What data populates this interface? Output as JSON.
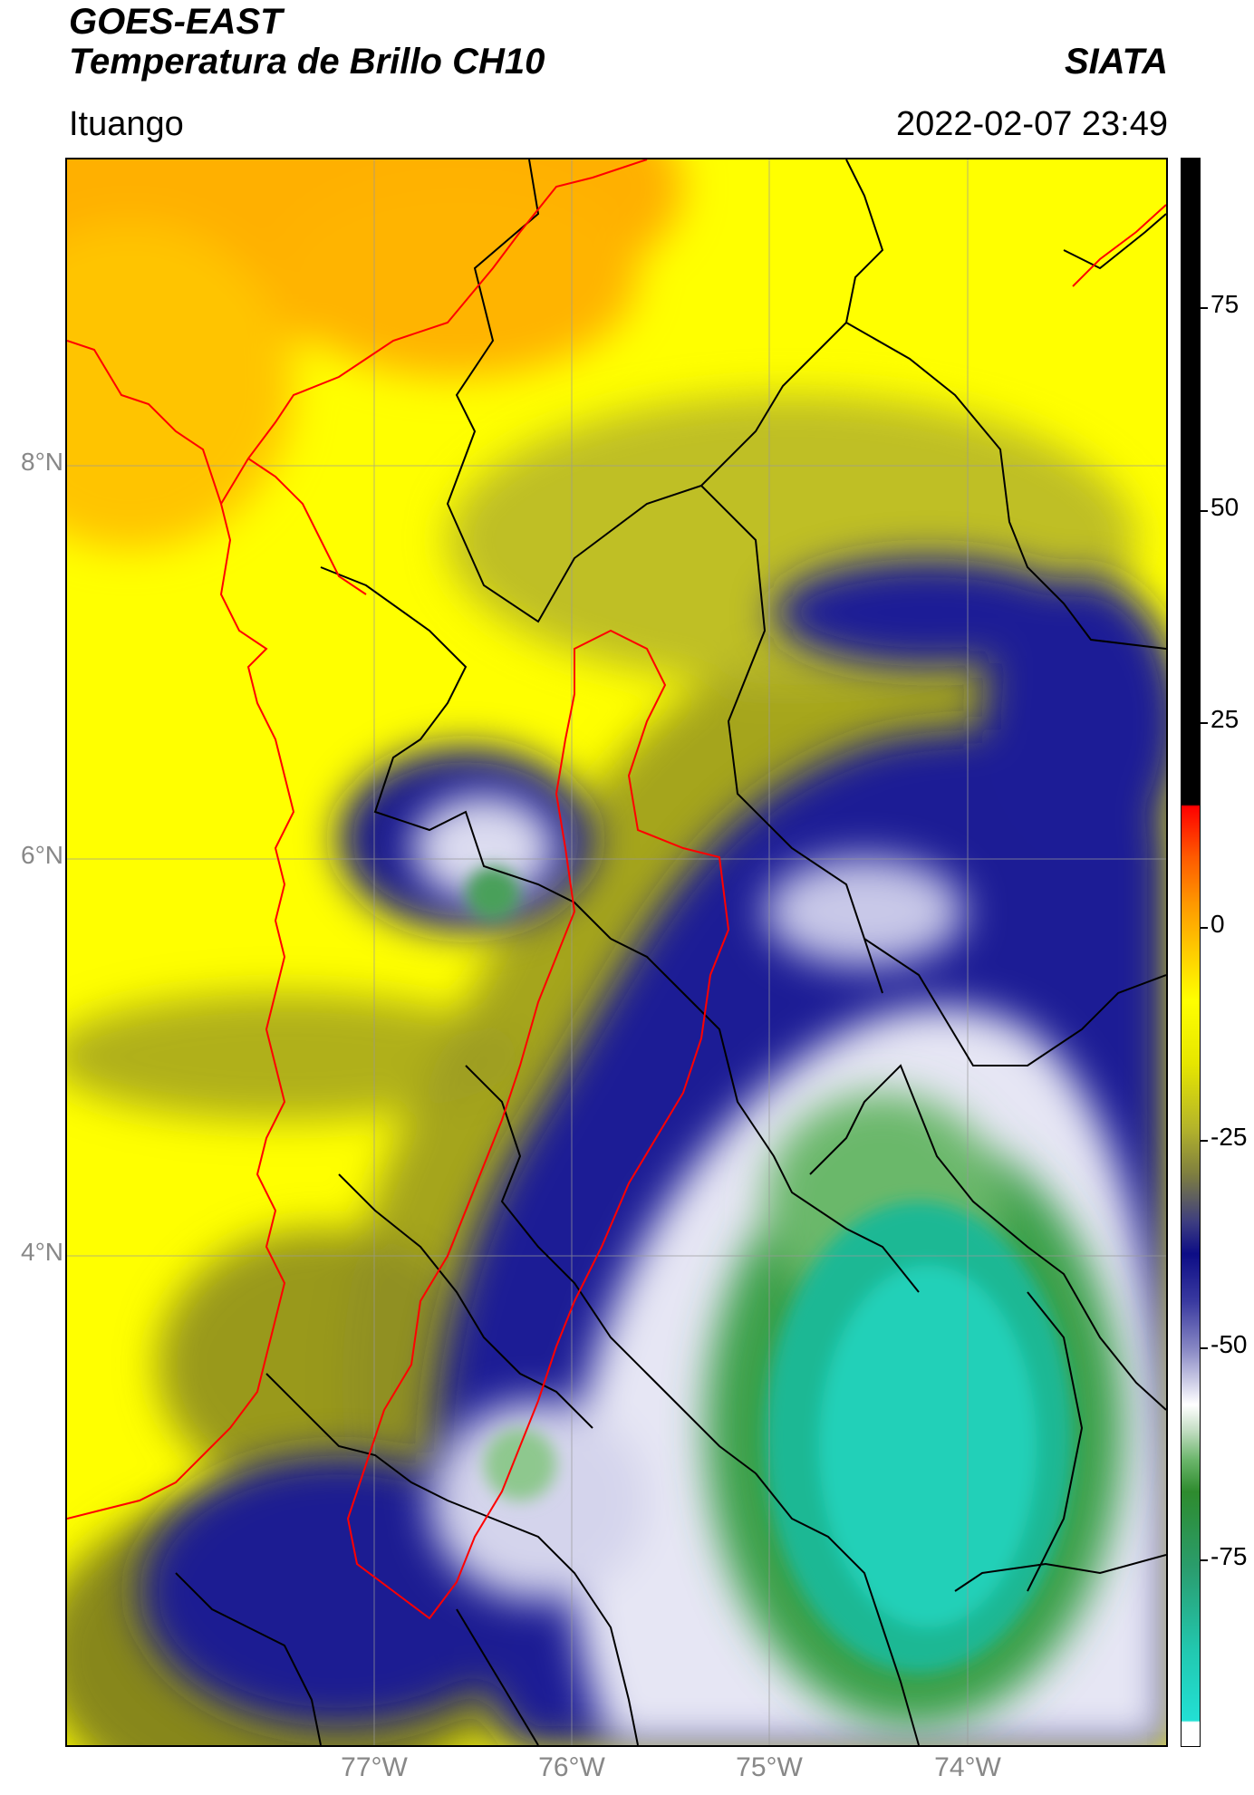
{
  "header": {
    "title_line1": "GOES-EAST",
    "title_line2": "Temperatura de Brillo CH10",
    "organization": "SIATA",
    "region": "Ituango",
    "timestamp": "2022-02-07 23:49"
  },
  "map": {
    "lat_labels": [
      "8°N",
      "6°N",
      "4°N"
    ],
    "lon_labels": [
      "77°W",
      "76°W",
      "75°W",
      "74°W"
    ],
    "lon_range": [
      -78.55,
      -73.0
    ],
    "lat_range": [
      1.85,
      9.55
    ],
    "layers": [
      "brightness-temperature-field",
      "coastline",
      "department-borders",
      "basin-outline",
      "graticule"
    ],
    "coastline_color": "#ff0000",
    "border_color": "#000000",
    "basin_color": "#ff0000"
  },
  "colorbar": {
    "labels": [
      "75",
      "50",
      "25",
      "0",
      "-25",
      "-50",
      "-75"
    ],
    "range": [
      -90,
      90
    ],
    "colors": {
      "warm_black": "#000000",
      "red": "#ff0000",
      "orange": "#ff9900",
      "yellow": "#ffff00",
      "olive": "#8a8a1e",
      "navy": "#0d0d86",
      "white": "#ffffff",
      "green": "#2e8b2e",
      "cyan": "#22e0cc"
    }
  }
}
